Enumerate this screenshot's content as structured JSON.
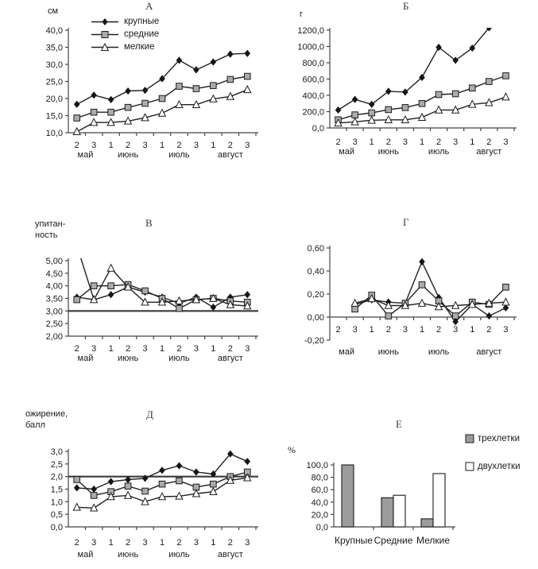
{
  "figure": {
    "background": "#ffffff"
  },
  "colors": {
    "series_line": "#202020",
    "axis": "#454545",
    "text": "#1a1a1a",
    "reference_line": "#3a3a3a",
    "marker_diamond_fill": "#151515",
    "marker_square_fill": "#ababab",
    "marker_triangle_fill": "#ffffff",
    "bar_gray": "#9c9c9c",
    "bar_white": "#ffffff"
  },
  "chart_data": [
    {
      "id": "A",
      "panel_label": "А",
      "type": "line",
      "unit": "см",
      "categories": [
        "2",
        "3",
        "1",
        "2",
        "3",
        "1",
        "2",
        "3",
        "1",
        "2",
        "3"
      ],
      "months": [
        {
          "label": "май",
          "center": 0.5
        },
        {
          "label": "июнь",
          "center": 3
        },
        {
          "label": "июль",
          "center": 6
        },
        {
          "label": "август",
          "center": 9
        }
      ],
      "ylim": [
        10,
        40
      ],
      "yticks": [
        "10,0",
        "15,0",
        "20,0",
        "25,0",
        "30,0",
        "35,0",
        "40,0"
      ],
      "legend_position": "top-left-inside",
      "series": [
        {
          "name": "крупные",
          "marker": "diamond",
          "values": [
            18.3,
            21.0,
            19.7,
            22.2,
            22.4,
            25.8,
            31.2,
            28.4,
            30.7,
            33.0,
            33.2
          ]
        },
        {
          "name": "средние",
          "marker": "square",
          "values": [
            14.3,
            16.0,
            16.0,
            17.4,
            18.6,
            20.0,
            23.6,
            22.9,
            23.8,
            25.6,
            26.5
          ]
        },
        {
          "name": "мелкие",
          "marker": "triangle",
          "values": [
            10.3,
            13.0,
            13.0,
            13.4,
            14.4,
            15.7,
            18.2,
            18.2,
            19.9,
            20.6,
            22.6
          ]
        }
      ]
    },
    {
      "id": "B",
      "panel_label": "Б",
      "type": "line",
      "unit": "г",
      "categories": [
        "2",
        "3",
        "1",
        "2",
        "3",
        "1",
        "2",
        "3",
        "1",
        "2",
        "3"
      ],
      "months": [
        {
          "label": "май",
          "center": 0.5
        },
        {
          "label": "июнь",
          "center": 3
        },
        {
          "label": "июль",
          "center": 6
        },
        {
          "label": "август",
          "center": 9
        }
      ],
      "ylim": [
        0,
        1200
      ],
      "yticks": [
        "0,0",
        "200,0",
        "400,0",
        "600,0",
        "800,0",
        "1000,0",
        "1200,0"
      ],
      "series": [
        {
          "name": "крупные",
          "marker": "diamond",
          "values": [
            220,
            350,
            290,
            450,
            440,
            620,
            990,
            830,
            980,
            1230,
            null
          ]
        },
        {
          "name": "средние",
          "marker": "square",
          "values": [
            100,
            160,
            185,
            225,
            250,
            300,
            410,
            420,
            490,
            570,
            640
          ]
        },
        {
          "name": "мелкие",
          "marker": "triangle",
          "values": [
            60,
            75,
            95,
            100,
            100,
            130,
            220,
            220,
            290,
            310,
            380
          ]
        }
      ]
    },
    {
      "id": "V",
      "panel_label": "В",
      "type": "line",
      "unit_lines": [
        "упитан-",
        "ность"
      ],
      "categories": [
        "2",
        "3",
        "1",
        "2",
        "3",
        "1",
        "2",
        "3",
        "1",
        "2",
        "3"
      ],
      "months": [
        {
          "label": "май",
          "center": 0.5
        },
        {
          "label": "июнь",
          "center": 3
        },
        {
          "label": "июль",
          "center": 6
        },
        {
          "label": "август",
          "center": 9
        }
      ],
      "ylim": [
        2,
        5
      ],
      "yticks": [
        "2,00",
        "2,50",
        "3,00",
        "3,50",
        "4,00",
        "4,50",
        "5,00"
      ],
      "reference_line": 3.0,
      "series": [
        {
          "name": "крупные",
          "marker": "diamond",
          "values": [
            3.55,
            3.45,
            3.65,
            3.95,
            3.75,
            3.55,
            3.3,
            3.55,
            3.15,
            3.55,
            3.65
          ]
        },
        {
          "name": "средние",
          "marker": "square",
          "values": [
            3.45,
            4.0,
            4.0,
            4.05,
            3.8,
            3.5,
            3.1,
            3.45,
            3.5,
            3.4,
            3.35
          ]
        },
        {
          "name": "мелкие",
          "marker": "triangle",
          "values": [
            5.6,
            3.45,
            4.7,
            3.95,
            3.35,
            3.35,
            3.4,
            3.45,
            3.5,
            3.25,
            3.2
          ]
        }
      ]
    },
    {
      "id": "G",
      "panel_label": "Г",
      "type": "line",
      "categories": [
        "2",
        "3",
        "1",
        "2",
        "3",
        "1",
        "2",
        "3",
        "1",
        "2",
        "3"
      ],
      "months": [
        {
          "label": "май",
          "center": 0.5
        },
        {
          "label": "июнь",
          "center": 3
        },
        {
          "label": "июль",
          "center": 6
        },
        {
          "label": "август",
          "center": 9
        }
      ],
      "ylim": [
        -0.2,
        0.6
      ],
      "yticks": [
        "-0,20",
        "0,00",
        "0,20",
        "0,40",
        "0,60"
      ],
      "x_axis_at": 0,
      "series": [
        {
          "name": "крупные",
          "marker": "diamond",
          "values": [
            null,
            0.11,
            0.15,
            0.13,
            0.12,
            0.48,
            0.17,
            -0.04,
            0.11,
            0.01,
            0.08
          ]
        },
        {
          "name": "средние",
          "marker": "square",
          "values": [
            null,
            0.07,
            0.19,
            0.01,
            0.12,
            0.28,
            0.14,
            0.01,
            0.13,
            0.11,
            0.26
          ]
        },
        {
          "name": "мелкие",
          "marker": "triangle",
          "values": [
            null,
            0.12,
            0.16,
            0.1,
            0.1,
            0.12,
            0.09,
            0.1,
            0.11,
            0.12,
            0.13
          ]
        }
      ]
    },
    {
      "id": "D",
      "panel_label": "Д",
      "type": "line",
      "unit_lines": [
        "ожирение,",
        "балл"
      ],
      "categories": [
        "2",
        "3",
        "1",
        "2",
        "3",
        "1",
        "2",
        "3",
        "1",
        "2",
        "3"
      ],
      "months": [
        {
          "label": "май",
          "center": 0.5
        },
        {
          "label": "июнь",
          "center": 3
        },
        {
          "label": "июль",
          "center": 6
        },
        {
          "label": "август",
          "center": 9
        }
      ],
      "ylim": [
        0,
        3
      ],
      "yticks": [
        "0,0",
        "0,5",
        "1,0",
        "1,5",
        "2,0",
        "2,5",
        "3,0"
      ],
      "reference_line": 2.0,
      "series": [
        {
          "name": "крупные",
          "marker": "diamond",
          "values": [
            1.55,
            1.5,
            1.8,
            1.88,
            1.93,
            2.25,
            2.43,
            2.18,
            2.1,
            2.9,
            2.6
          ]
        },
        {
          "name": "средние",
          "marker": "square",
          "values": [
            1.88,
            1.25,
            1.4,
            1.62,
            1.42,
            1.7,
            1.83,
            1.58,
            1.7,
            2.0,
            2.18
          ]
        },
        {
          "name": "мелкие",
          "marker": "triangle",
          "values": [
            0.78,
            0.75,
            1.2,
            1.25,
            1.0,
            1.2,
            1.22,
            1.32,
            1.4,
            1.85,
            1.95
          ]
        }
      ]
    },
    {
      "id": "E",
      "panel_label": "Е",
      "type": "bar",
      "unit": "%",
      "categories": [
        "Крупные",
        "Средние",
        "Мелкие"
      ],
      "ylim": [
        0,
        100
      ],
      "yticks": [
        "0,0",
        "20,0",
        "40,0",
        "60,0",
        "80,0",
        "100,0"
      ],
      "legend_position": "right",
      "series": [
        {
          "name": "трехлетки",
          "fill": "#9c9c9c",
          "values": [
            100,
            47,
            13
          ]
        },
        {
          "name": "двухлетки",
          "fill": "#ffffff",
          "values": [
            0,
            51,
            86
          ]
        }
      ]
    }
  ]
}
